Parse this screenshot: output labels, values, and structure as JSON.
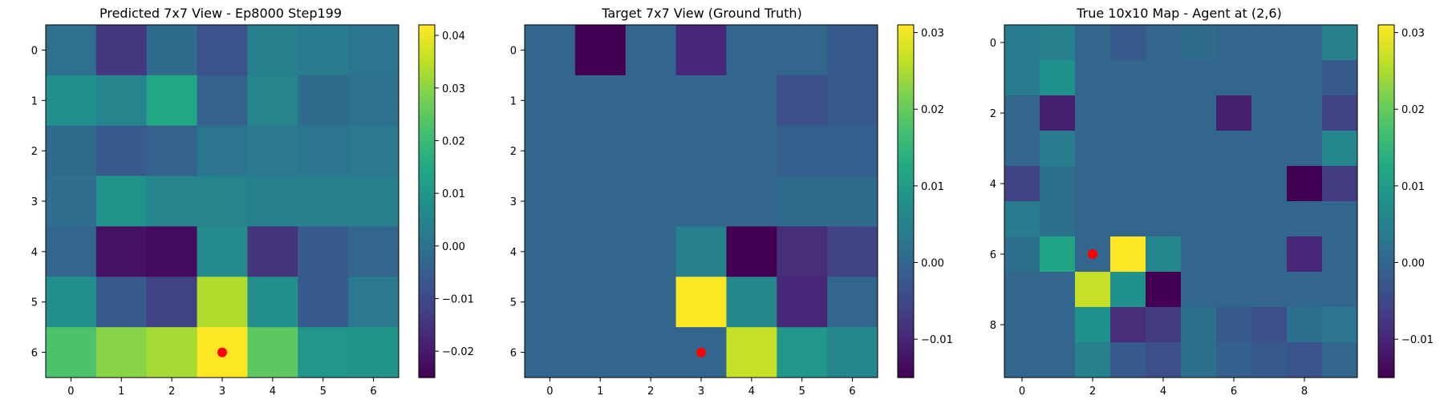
{
  "colormap": "viridis",
  "marker_color": "#ff0000",
  "chart_data": [
    {
      "type": "heatmap",
      "title": "Predicted 7x7 View - Ep8000 Step199",
      "x_ticks": [
        "0",
        "1",
        "2",
        "3",
        "4",
        "5",
        "6"
      ],
      "y_ticks": [
        "0",
        "1",
        "2",
        "3",
        "4",
        "5",
        "6"
      ],
      "vmin": -0.025,
      "vmax": 0.042,
      "colorbar_ticks": [
        -0.02,
        -0.01,
        0.0,
        0.01,
        0.02,
        0.03,
        0.04
      ],
      "colorbar_labels": [
        "−0.02",
        "−0.01",
        "0.00",
        "0.01",
        "0.02",
        "0.03",
        "0.04"
      ],
      "agent": {
        "row": 6,
        "col": 3
      },
      "z": [
        [
          0.0,
          -0.014,
          -0.002,
          -0.008,
          0.004,
          0.003,
          0.001
        ],
        [
          0.008,
          0.005,
          0.015,
          -0.004,
          0.005,
          -0.002,
          0.0
        ],
        [
          -0.002,
          -0.006,
          -0.004,
          0.001,
          0.002,
          0.001,
          0.002
        ],
        [
          -0.001,
          0.009,
          0.005,
          0.005,
          0.004,
          0.004,
          0.004
        ],
        [
          -0.003,
          -0.022,
          -0.023,
          0.007,
          -0.015,
          -0.006,
          -0.003
        ],
        [
          0.008,
          -0.006,
          -0.012,
          0.034,
          0.008,
          -0.006,
          0.002
        ],
        [
          0.023,
          0.03,
          0.033,
          0.042,
          0.025,
          0.01,
          0.009
        ]
      ]
    },
    {
      "type": "heatmap",
      "title": "Target 7x7 View (Ground Truth)",
      "x_ticks": [
        "0",
        "1",
        "2",
        "3",
        "4",
        "5",
        "6"
      ],
      "y_ticks": [
        "0",
        "1",
        "2",
        "3",
        "4",
        "5",
        "6"
      ],
      "vmin": -0.015,
      "vmax": 0.031,
      "colorbar_ticks": [
        -0.01,
        0.0,
        0.01,
        0.02,
        0.03
      ],
      "colorbar_labels": [
        "−0.01",
        "0.00",
        "0.01",
        "0.02",
        "0.03"
      ],
      "agent": {
        "row": 6,
        "col": 3
      },
      "z": [
        [
          0.0,
          -0.015,
          0.0,
          -0.01,
          0.0,
          0.0,
          -0.002
        ],
        [
          0.0,
          0.0,
          0.0,
          0.0,
          0.0,
          -0.004,
          -0.002
        ],
        [
          0.0,
          0.0,
          0.0,
          0.0,
          0.0,
          -0.001,
          -0.001
        ],
        [
          0.0,
          0.0,
          0.0,
          0.0,
          0.0,
          0.001,
          0.001
        ],
        [
          0.0,
          0.0,
          0.0,
          0.005,
          -0.015,
          -0.009,
          -0.006
        ],
        [
          0.0,
          0.0,
          0.0,
          0.031,
          0.006,
          -0.01,
          0.0
        ],
        [
          0.0,
          0.0,
          0.0,
          0.0,
          0.027,
          0.009,
          0.006
        ]
      ]
    },
    {
      "type": "heatmap",
      "title": "True 10x10 Map - Agent at (2,6)",
      "x_ticks": [
        "0",
        "2",
        "4",
        "6",
        "8"
      ],
      "y_ticks": [
        "0",
        "2",
        "4",
        "6",
        "8"
      ],
      "tick_step": 2,
      "vmin": -0.015,
      "vmax": 0.031,
      "colorbar_ticks": [
        -0.01,
        0.0,
        0.01,
        0.02,
        0.03
      ],
      "colorbar_labels": [
        "−0.01",
        "0.00",
        "0.01",
        "0.02",
        "0.03"
      ],
      "agent": {
        "row": 6,
        "col": 2
      },
      "z": [
        [
          0.004,
          0.005,
          0.0,
          -0.002,
          0.0,
          0.001,
          0.0,
          0.0,
          0.0,
          0.005
        ],
        [
          0.004,
          0.008,
          0.0,
          0.0,
          0.0,
          0.0,
          0.0,
          0.0,
          0.0,
          -0.002
        ],
        [
          0.0,
          -0.011,
          0.0,
          0.0,
          0.0,
          0.0,
          -0.011,
          0.0,
          0.0,
          -0.006
        ],
        [
          0.0,
          0.004,
          0.0,
          0.0,
          0.0,
          0.0,
          0.0,
          0.0,
          0.0,
          0.006
        ],
        [
          -0.006,
          0.002,
          0.0,
          0.0,
          0.0,
          0.0,
          0.0,
          0.0,
          -0.015,
          -0.007
        ],
        [
          0.004,
          0.002,
          0.0,
          0.0,
          0.0,
          0.0,
          0.0,
          0.0,
          0.0,
          0.0
        ],
        [
          0.002,
          0.012,
          0.0,
          0.031,
          0.006,
          0.0,
          0.0,
          0.0,
          -0.01,
          0.0
        ],
        [
          0.0,
          0.0,
          0.027,
          0.008,
          -0.015,
          0.0,
          0.0,
          0.0,
          0.0,
          0.0
        ],
        [
          0.0,
          0.0,
          0.008,
          -0.009,
          -0.007,
          0.002,
          -0.002,
          -0.004,
          0.002,
          0.003
        ],
        [
          0.0,
          0.0,
          0.005,
          -0.002,
          -0.004,
          0.002,
          -0.001,
          -0.002,
          -0.003,
          0.0
        ]
      ]
    }
  ]
}
